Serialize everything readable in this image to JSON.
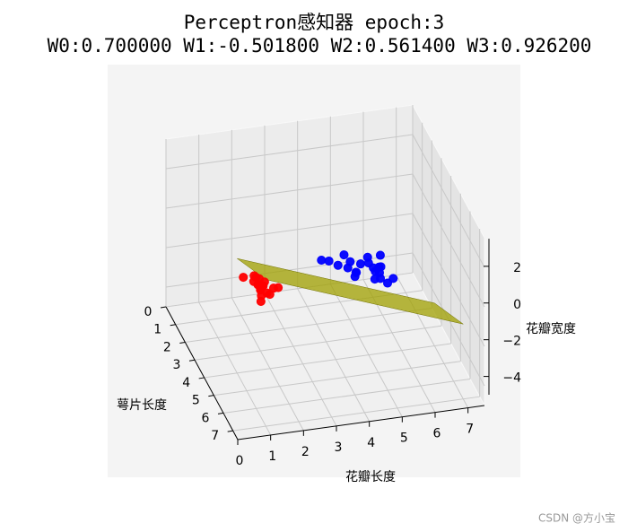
{
  "chart_data": {
    "type": "scatter3d",
    "title": "Perceptron感知器 epoch:3",
    "subtitle": "W0:0.700000 W1:-0.501800 W2:0.561400 W3:0.926200",
    "x_label": "萼片长度",
    "y_label": "花瓣长度",
    "z_label": "花瓣宽度",
    "xlim": [
      0,
      7.5
    ],
    "ylim": [
      0,
      7.5
    ],
    "zlim": [
      -5,
      3.5
    ],
    "xticks": [
      0,
      1,
      2,
      3,
      4,
      5,
      6,
      7
    ],
    "yticks": [
      0,
      1,
      2,
      3,
      4,
      5,
      6,
      7
    ],
    "zticks": [
      {
        "value": -4,
        "label": "−4"
      },
      {
        "value": -2,
        "label": "−2"
      },
      0,
      2
    ],
    "grid": true,
    "series": [
      {
        "color": "#ff0000",
        "x": [
          5.1,
          4.9,
          4.7,
          4.6,
          5.0,
          5.4,
          4.6,
          5.0,
          4.4,
          4.9,
          5.4,
          4.8,
          4.8,
          4.3,
          5.8,
          5.7,
          5.4,
          5.1,
          5.2,
          5.5
        ],
        "y": [
          1.4,
          1.4,
          1.3,
          1.5,
          1.4,
          1.7,
          1.4,
          1.5,
          1.4,
          1.5,
          1.5,
          1.6,
          1.4,
          1.1,
          1.2,
          1.5,
          1.3,
          1.4,
          1.9,
          1.3
        ],
        "z": [
          0.2,
          0.2,
          0.2,
          0.2,
          0.2,
          0.4,
          0.3,
          0.2,
          0.2,
          0.1,
          0.2,
          0.2,
          0.1,
          0.1,
          0.2,
          0.4,
          0.4,
          0.3,
          0.2,
          0.2
        ]
      },
      {
        "color": "#0000ff",
        "x": [
          7.0,
          6.4,
          6.9,
          5.5,
          6.5,
          5.7,
          6.3,
          4.9,
          6.6,
          5.2,
          5.0,
          5.9,
          6.0,
          6.1,
          5.6,
          6.7,
          5.6,
          5.8,
          6.2,
          5.6,
          5.9,
          6.1
        ],
        "y": [
          4.7,
          4.5,
          4.9,
          4.0,
          4.6,
          4.5,
          4.7,
          3.3,
          4.6,
          3.9,
          3.5,
          4.2,
          4.0,
          4.7,
          3.6,
          4.4,
          4.5,
          4.1,
          4.5,
          3.9,
          4.8,
          4.0
        ],
        "z": [
          1.4,
          1.5,
          1.5,
          1.3,
          1.5,
          1.3,
          1.6,
          1.0,
          1.3,
          1.4,
          1.0,
          1.5,
          1.0,
          1.4,
          1.3,
          1.4,
          1.5,
          1.0,
          1.5,
          1.1,
          1.8,
          1.3
        ]
      }
    ],
    "surface": {
      "color": "#a0a000",
      "x": [
        4,
        7
      ],
      "y": [
        1,
        7
      ],
      "z": [
        [
          0.805,
          -2.832
        ],
        [
          2.431,
          -1.206
        ]
      ]
    }
  }
}
